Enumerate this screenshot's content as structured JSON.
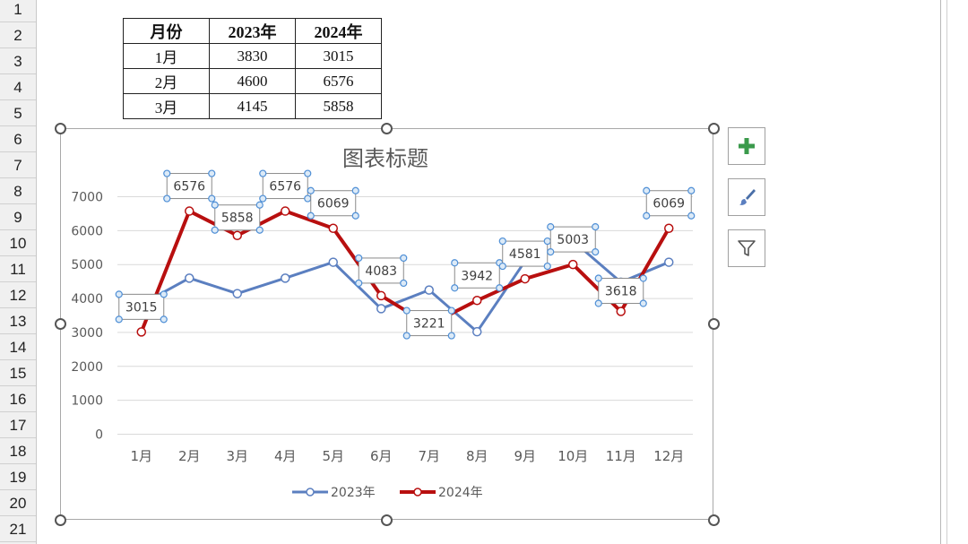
{
  "row_numbers": [
    "1",
    "2",
    "3",
    "4",
    "5",
    "6",
    "7",
    "8",
    "9",
    "10",
    "11",
    "12",
    "13",
    "14",
    "15",
    "16",
    "17",
    "18",
    "19",
    "20",
    "21"
  ],
  "table": {
    "headers": [
      "月份",
      "2023年",
      "2024年"
    ],
    "rows": [
      [
        "1月",
        "3830",
        "3015"
      ],
      [
        "2月",
        "4600",
        "6576"
      ],
      [
        "3月",
        "4145",
        "5858"
      ]
    ]
  },
  "side_buttons": {
    "add": "plus-icon",
    "style": "brush-icon",
    "filter": "filter-icon"
  },
  "chart_data": {
    "type": "line",
    "title": "图表标题",
    "categories": [
      "1月",
      "2月",
      "3月",
      "4月",
      "5月",
      "6月",
      "7月",
      "8月",
      "9月",
      "10月",
      "11月",
      "12月"
    ],
    "y_ticks": [
      "0",
      "1000",
      "2000",
      "3000",
      "4000",
      "5000",
      "6000",
      "7000"
    ],
    "ylim": [
      0,
      7000
    ],
    "grid": true,
    "legend": "bottom",
    "series": [
      {
        "name": "2023年",
        "color": "#5b7fc0",
        "values": [
          3830,
          4600,
          4145,
          4600,
          5070,
          3700,
          4250,
          3020,
          5100,
          5700,
          4480,
          5070
        ]
      },
      {
        "name": "2024年",
        "color": "#b80f0f",
        "values": [
          3015,
          6576,
          5858,
          6576,
          6069,
          4083,
          3221,
          3942,
          4581,
          5003,
          3618,
          6069
        ]
      }
    ],
    "data_labels": [
      "3015",
      "6576",
      "5858",
      "6576",
      "6069",
      "4083",
      "3221",
      "3942",
      "4581",
      "5003",
      "3618",
      "6069"
    ]
  }
}
